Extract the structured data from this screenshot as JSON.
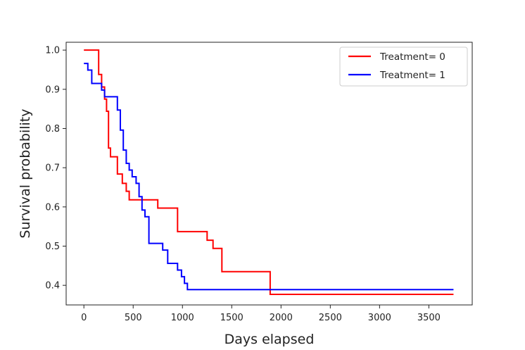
{
  "chart_data": {
    "type": "line",
    "line_style": "step-post",
    "title": "",
    "xlabel": "Days elapsed",
    "ylabel": "Survival probability",
    "xlim": [
      -180,
      3940
    ],
    "ylim": [
      0.35,
      1.02
    ],
    "xticks": [
      0,
      500,
      1000,
      1500,
      2000,
      2500,
      3000,
      3500
    ],
    "yticks": [
      0.4,
      0.5,
      0.6,
      0.7,
      0.8,
      0.9,
      1.0
    ],
    "xtick_labels": [
      "0",
      "500",
      "1000",
      "1500",
      "2000",
      "2500",
      "3000",
      "3500"
    ],
    "ytick_labels": [
      "0.4",
      "0.5",
      "0.6",
      "0.7",
      "0.8",
      "0.9",
      "1.0"
    ],
    "grid": false,
    "legend_position": "top-right",
    "series": [
      {
        "name": "Treatment= 0",
        "color": "#ff0000",
        "x": [
          0,
          150,
          180,
          210,
          230,
          250,
          270,
          300,
          340,
          390,
          430,
          460,
          600,
          750,
          950,
          1250,
          1310,
          1400,
          1890,
          3750
        ],
        "y": [
          1.0,
          0.938,
          0.906,
          0.875,
          0.844,
          0.75,
          0.728,
          0.728,
          0.684,
          0.66,
          0.64,
          0.618,
          0.618,
          0.597,
          0.537,
          0.515,
          0.494,
          0.435,
          0.377,
          0.377
        ]
      },
      {
        "name": "Treatment= 1",
        "color": "#0000ff",
        "x": [
          0,
          40,
          80,
          130,
          180,
          210,
          340,
          370,
          400,
          430,
          460,
          490,
          530,
          560,
          590,
          620,
          660,
          800,
          850,
          950,
          990,
          1020,
          1050,
          1090,
          3750
        ],
        "y": [
          0.966,
          0.949,
          0.915,
          0.915,
          0.898,
          0.881,
          0.847,
          0.796,
          0.745,
          0.711,
          0.694,
          0.677,
          0.66,
          0.626,
          0.592,
          0.575,
          0.507,
          0.49,
          0.456,
          0.439,
          0.422,
          0.405,
          0.389,
          0.389,
          0.389
        ]
      }
    ]
  }
}
